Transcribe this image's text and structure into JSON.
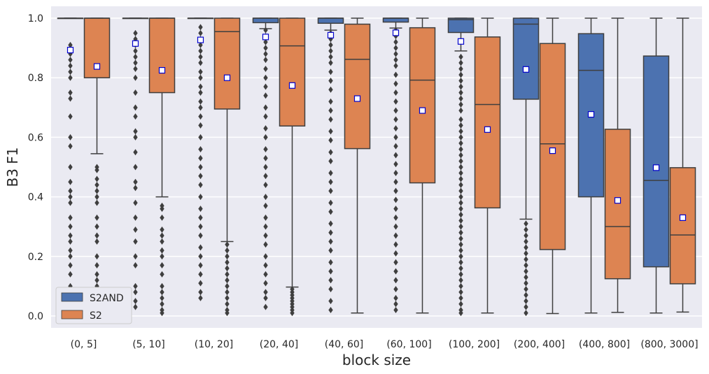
{
  "chart_data": {
    "type": "box",
    "xlabel": "block size",
    "ylabel": "B3 F1",
    "ylim": [
      -0.04,
      1.04
    ],
    "yticks": [
      "0.0",
      "0.2",
      "0.4",
      "0.6",
      "0.8",
      "1.0"
    ],
    "grid": true,
    "legend_position": "bottom-left",
    "categories": [
      "(0, 5]",
      "(5, 10]",
      "(10, 20]",
      "(20, 40]",
      "(40, 60]",
      "(60, 100]",
      "(100, 200]",
      "(200, 400]",
      "(400, 800]",
      "(800, 3000]"
    ],
    "series": [
      {
        "name": "S2AND",
        "color": "#4c72b0",
        "boxes": [
          {
            "q1": 1.0,
            "median": 1.0,
            "q3": 1.0,
            "whisker_low": 1.0,
            "whisker_high": 1.0,
            "mean": 0.893,
            "outliers": [
              0.91,
              0.9,
              0.88,
              0.86,
              0.84,
              0.82,
              0.8,
              0.75,
              0.73,
              0.67,
              0.6,
              0.57,
              0.5,
              0.45,
              0.42,
              0.4,
              0.38,
              0.33,
              0.3,
              0.27,
              0.25,
              0.22,
              0.2,
              0.17,
              0.14,
              0.1,
              0.07,
              0.04
            ]
          },
          {
            "q1": 1.0,
            "median": 1.0,
            "q3": 1.0,
            "whisker_low": 1.0,
            "whisker_high": 1.0,
            "mean": 0.915,
            "outliers": [
              0.95,
              0.93,
              0.91,
              0.89,
              0.87,
              0.85,
              0.83,
              0.8,
              0.75,
              0.7,
              0.67,
              0.62,
              0.6,
              0.55,
              0.5,
              0.45,
              0.43,
              0.38,
              0.33,
              0.29,
              0.25,
              0.2,
              0.17,
              0.1,
              0.08,
              0.05,
              0.03
            ]
          },
          {
            "q1": 1.0,
            "median": 1.0,
            "q3": 1.0,
            "whisker_low": 1.0,
            "whisker_high": 1.0,
            "mean": 0.927,
            "outliers": [
              0.97,
              0.95,
              0.93,
              0.91,
              0.89,
              0.87,
              0.85,
              0.82,
              0.8,
              0.77,
              0.75,
              0.72,
              0.7,
              0.67,
              0.64,
              0.6,
              0.56,
              0.53,
              0.5,
              0.47,
              0.44,
              0.4,
              0.36,
              0.33,
              0.3,
              0.27,
              0.23,
              0.2,
              0.17,
              0.14,
              0.11,
              0.08,
              0.06
            ]
          },
          {
            "q1": 0.985,
            "median": 1.0,
            "q3": 1.0,
            "whisker_low": 0.965,
            "whisker_high": 1.0,
            "mean": 0.937,
            "outliers": [
              0.96,
              0.94,
              0.92,
              0.9,
              0.88,
              0.86,
              0.83,
              0.8,
              0.77,
              0.74,
              0.7,
              0.67,
              0.63,
              0.6,
              0.56,
              0.53,
              0.5,
              0.47,
              0.44,
              0.4,
              0.37,
              0.33,
              0.3,
              0.27,
              0.24,
              0.2,
              0.17,
              0.14,
              0.11,
              0.08,
              0.06,
              0.03
            ]
          },
          {
            "q1": 0.983,
            "median": 1.0,
            "q3": 1.0,
            "whisker_low": 0.96,
            "whisker_high": 1.0,
            "mean": 0.943,
            "outliers": [
              0.95,
              0.93,
              0.91,
              0.89,
              0.87,
              0.85,
              0.82,
              0.79,
              0.76,
              0.72,
              0.69,
              0.66,
              0.62,
              0.59,
              0.55,
              0.52,
              0.48,
              0.45,
              0.42,
              0.38,
              0.35,
              0.31,
              0.28,
              0.25,
              0.22,
              0.18,
              0.15,
              0.12,
              0.09,
              0.05,
              0.02
            ]
          },
          {
            "q1": 0.987,
            "median": 1.0,
            "q3": 1.0,
            "whisker_low": 0.967,
            "whisker_high": 1.0,
            "mean": 0.951,
            "outliers": [
              0.96,
              0.94,
              0.92,
              0.9,
              0.88,
              0.86,
              0.84,
              0.81,
              0.78,
              0.75,
              0.72,
              0.69,
              0.66,
              0.63,
              0.6,
              0.57,
              0.54,
              0.51,
              0.48,
              0.45,
              0.42,
              0.39,
              0.36,
              0.33,
              0.3,
              0.27,
              0.24,
              0.21,
              0.18,
              0.15,
              0.12,
              0.09,
              0.06,
              0.04,
              0.02
            ]
          },
          {
            "q1": 0.952,
            "median": 0.995,
            "q3": 1.0,
            "whisker_low": 0.89,
            "whisker_high": 1.0,
            "mean": 0.922,
            "outliers": [
              0.87,
              0.85,
              0.83,
              0.81,
              0.79,
              0.77,
              0.75,
              0.73,
              0.71,
              0.69,
              0.66,
              0.64,
              0.62,
              0.6,
              0.58,
              0.56,
              0.54,
              0.52,
              0.5,
              0.48,
              0.46,
              0.44,
              0.42,
              0.4,
              0.38,
              0.36,
              0.34,
              0.32,
              0.3,
              0.28,
              0.26,
              0.24,
              0.22,
              0.2,
              0.18,
              0.16,
              0.14,
              0.12,
              0.1,
              0.08,
              0.06,
              0.04,
              0.02,
              0.01
            ]
          },
          {
            "q1": 0.728,
            "median": 0.98,
            "q3": 1.0,
            "whisker_low": 0.325,
            "whisker_high": 1.0,
            "mean": 0.828,
            "outliers": [
              0.31,
              0.29,
              0.27,
              0.25,
              0.23,
              0.21,
              0.19,
              0.17,
              0.15,
              0.13,
              0.11,
              0.09,
              0.07,
              0.05,
              0.03,
              0.01
            ]
          },
          {
            "q1": 0.4,
            "median": 0.825,
            "q3": 0.948,
            "whisker_low": 0.01,
            "whisker_high": 1.0,
            "mean": 0.677,
            "outliers": []
          },
          {
            "q1": 0.165,
            "median": 0.455,
            "q3": 0.873,
            "whisker_low": 0.01,
            "whisker_high": 1.0,
            "mean": 0.498,
            "outliers": []
          }
        ]
      },
      {
        "name": "S2",
        "color": "#dd8452",
        "boxes": [
          {
            "q1": 0.8,
            "median": 1.0,
            "q3": 1.0,
            "whisker_low": 0.545,
            "whisker_high": 1.0,
            "mean": 0.838,
            "outliers": [
              0.5,
              0.49,
              0.46,
              0.44,
              0.42,
              0.4,
              0.38,
              0.33,
              0.3,
              0.27,
              0.25,
              0.2,
              0.17,
              0.14,
              0.12,
              0.1,
              0.08,
              0.05,
              0.03
            ]
          },
          {
            "q1": 0.75,
            "median": 1.0,
            "q3": 1.0,
            "whisker_low": 0.4,
            "whisker_high": 1.0,
            "mean": 0.825,
            "outliers": [
              0.37,
              0.36,
              0.33,
              0.29,
              0.27,
              0.25,
              0.22,
              0.2,
              0.17,
              0.14,
              0.1,
              0.08,
              0.06,
              0.04,
              0.02,
              0.01
            ]
          },
          {
            "q1": 0.695,
            "median": 0.955,
            "q3": 1.0,
            "whisker_low": 0.25,
            "whisker_high": 1.0,
            "mean": 0.8,
            "outliers": [
              0.24,
              0.22,
              0.2,
              0.18,
              0.16,
              0.14,
              0.12,
              0.1,
              0.08,
              0.06,
              0.04,
              0.02,
              0.01
            ]
          },
          {
            "q1": 0.638,
            "median": 0.907,
            "q3": 1.0,
            "whisker_low": 0.097,
            "whisker_high": 1.0,
            "mean": 0.774,
            "outliers": [
              0.09,
              0.08,
              0.07,
              0.06,
              0.05,
              0.04,
              0.03,
              0.02,
              0.01
            ]
          },
          {
            "q1": 0.562,
            "median": 0.862,
            "q3": 0.98,
            "whisker_low": 0.01,
            "whisker_high": 1.0,
            "mean": 0.73,
            "outliers": []
          },
          {
            "q1": 0.447,
            "median": 0.792,
            "q3": 0.968,
            "whisker_low": 0.01,
            "whisker_high": 1.0,
            "mean": 0.69,
            "outliers": []
          },
          {
            "q1": 0.363,
            "median": 0.71,
            "q3": 0.937,
            "whisker_low": 0.01,
            "whisker_high": 1.0,
            "mean": 0.626,
            "outliers": []
          },
          {
            "q1": 0.223,
            "median": 0.578,
            "q3": 0.915,
            "whisker_low": 0.008,
            "whisker_high": 1.0,
            "mean": 0.555,
            "outliers": []
          },
          {
            "q1": 0.125,
            "median": 0.3,
            "q3": 0.627,
            "whisker_low": 0.012,
            "whisker_high": 1.0,
            "mean": 0.388,
            "outliers": []
          },
          {
            "q1": 0.108,
            "median": 0.272,
            "q3": 0.498,
            "whisker_low": 0.013,
            "whisker_high": 1.0,
            "mean": 0.33,
            "outliers": []
          }
        ]
      }
    ]
  }
}
